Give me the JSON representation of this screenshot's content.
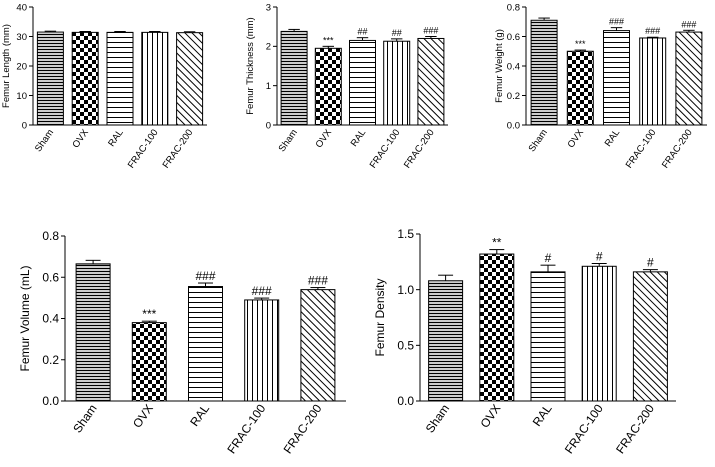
{
  "chart_data": [
    {
      "type": "bar",
      "panel": "A",
      "categories": [
        "Sham",
        "OVX",
        "RAL",
        "FRAC-100",
        "FRAC-200"
      ],
      "values": [
        31.5,
        31.4,
        31.4,
        31.4,
        31.3
      ],
      "errors": [
        0.3,
        0.3,
        0.3,
        0.3,
        0.3
      ],
      "annotations": [
        "",
        "",
        "",
        "",
        ""
      ],
      "ylabel": "Femur Length (mm)",
      "ylim": [
        0,
        40
      ],
      "yticks": [
        "0",
        "10",
        "20",
        "30",
        "40"
      ]
    },
    {
      "type": "bar",
      "panel": "B",
      "categories": [
        "Sham",
        "OVX",
        "RAL",
        "FRAC-100",
        "FRAC-200"
      ],
      "values": [
        2.38,
        1.95,
        2.15,
        2.13,
        2.2
      ],
      "errors": [
        0.05,
        0.05,
        0.07,
        0.06,
        0.05
      ],
      "annotations": [
        "",
        "***",
        "##",
        "##",
        "###"
      ],
      "ylabel": "Femur Thickness (mm)",
      "ylim": [
        0,
        3
      ],
      "yticks": [
        "0",
        "1",
        "2",
        "3"
      ]
    },
    {
      "type": "bar",
      "panel": "C",
      "categories": [
        "Sham",
        "OVX",
        "RAL",
        "FRAC-100",
        "FRAC-200"
      ],
      "values": [
        0.71,
        0.5,
        0.64,
        0.59,
        0.63
      ],
      "errors": [
        0.015,
        0.008,
        0.02,
        0.005,
        0.012
      ],
      "annotations": [
        "",
        "***",
        "###",
        "###",
        "###"
      ],
      "ylabel": "Femur Weight (g)",
      "ylim": [
        0,
        0.8
      ],
      "yticks": [
        "0.0",
        "0.2",
        "0.4",
        "0.6",
        "0.8"
      ]
    },
    {
      "type": "bar",
      "panel": "D",
      "categories": [
        "Sham",
        "OVX",
        "RAL",
        "FRAC-100",
        "FRAC-200"
      ],
      "values": [
        0.665,
        0.38,
        0.555,
        0.49,
        0.54
      ],
      "errors": [
        0.017,
        0.007,
        0.017,
        0.009,
        0.01
      ],
      "annotations": [
        "",
        "***",
        "###",
        "###",
        "###"
      ],
      "ylabel": "Femur Volume (mL)",
      "ylim": [
        0,
        0.8
      ],
      "yticks": [
        "0.0",
        "0.2",
        "0.4",
        "0.6",
        "0.8"
      ]
    },
    {
      "type": "bar",
      "panel": "E",
      "categories": [
        "Sham",
        "OVX",
        "RAL",
        "FRAC-100",
        "FRAC-200"
      ],
      "values": [
        1.08,
        1.32,
        1.16,
        1.21,
        1.16
      ],
      "errors": [
        0.05,
        0.04,
        0.06,
        0.025,
        0.02
      ],
      "annotations": [
        "",
        "**",
        "#",
        "#",
        "#"
      ],
      "ylabel": "Femur Density",
      "ylim": [
        0,
        1.5
      ],
      "yticks": [
        "0.0",
        "0.5",
        "1.0",
        "1.5"
      ]
    }
  ]
}
